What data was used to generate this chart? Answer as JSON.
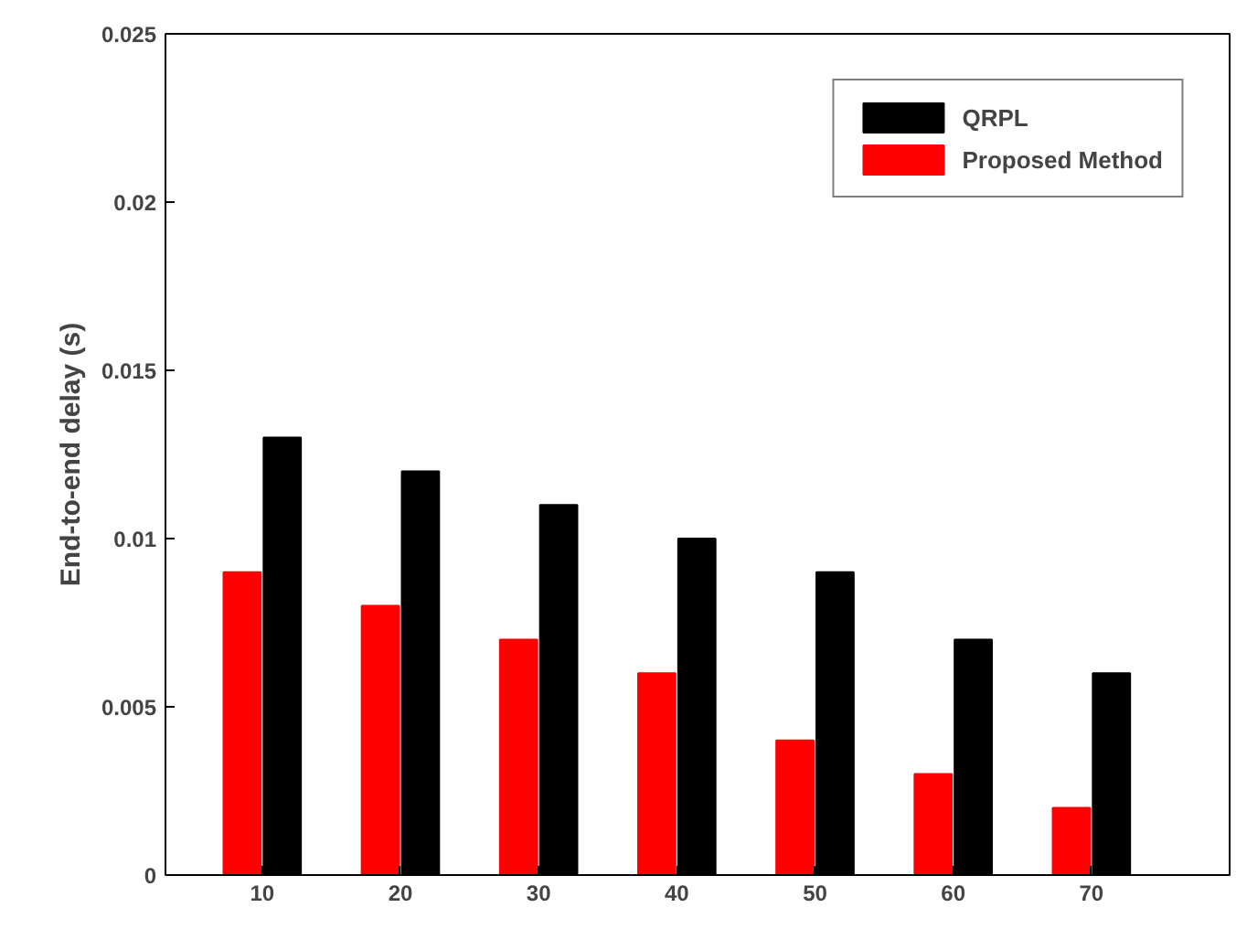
{
  "chart_data": {
    "type": "bar",
    "ylabel": "End-to-end delay (s)",
    "categories": [
      "10",
      "20",
      "30",
      "40",
      "50",
      "60",
      "70"
    ],
    "series": [
      {
        "name": "Proposed Method",
        "color": "#ff0000",
        "values": [
          0.009,
          0.008,
          0.007,
          0.006,
          0.004,
          0.003,
          0.002
        ]
      },
      {
        "name": "QRPL",
        "color": "#000000",
        "values": [
          0.013,
          0.012,
          0.011,
          0.01,
          0.009,
          0.007,
          0.006
        ]
      }
    ],
    "ylim": [
      0,
      0.025
    ],
    "yticks": [
      0,
      0.005,
      0.01,
      0.015,
      0.02,
      0.025
    ],
    "grid": false,
    "legend": "top right"
  }
}
